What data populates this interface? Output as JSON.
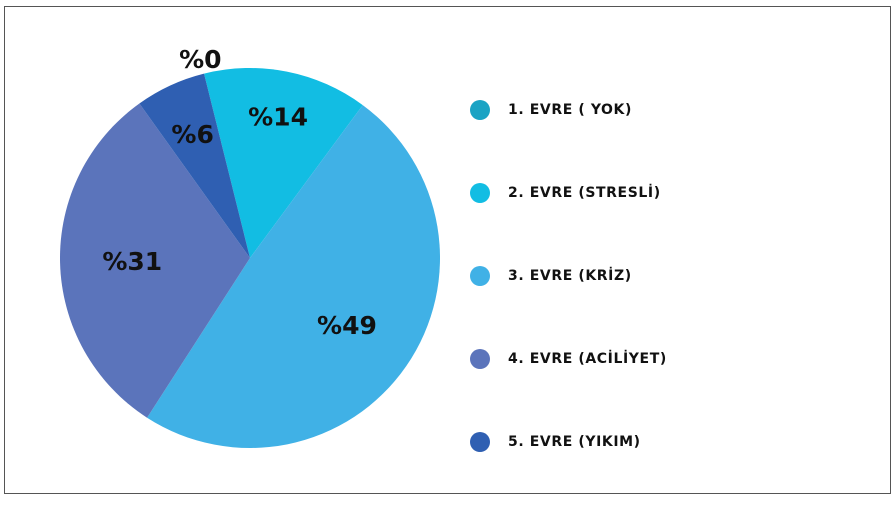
{
  "chart_data": {
    "type": "pie",
    "slices": [
      {
        "label": "1. EVRE ( YOK)",
        "value": 0,
        "value_label": "%0",
        "color": "#1aa3c4"
      },
      {
        "label": "2. EVRE (STRESLİ)",
        "value": 14,
        "value_label": "%14",
        "color": "#12bde3"
      },
      {
        "label": "3. EVRE (KRİZ)",
        "value": 49,
        "value_label": "%49",
        "color": "#40b1e6"
      },
      {
        "label": "4. EVRE (ACİLİYET)",
        "value": 31,
        "value_label": "%31",
        "color": "#5b74bb"
      },
      {
        "label": "5. EVRE (YIKIM)",
        "value": 6,
        "value_label": "%6",
        "color": "#2f5fb2"
      }
    ],
    "legend_position": "right"
  }
}
